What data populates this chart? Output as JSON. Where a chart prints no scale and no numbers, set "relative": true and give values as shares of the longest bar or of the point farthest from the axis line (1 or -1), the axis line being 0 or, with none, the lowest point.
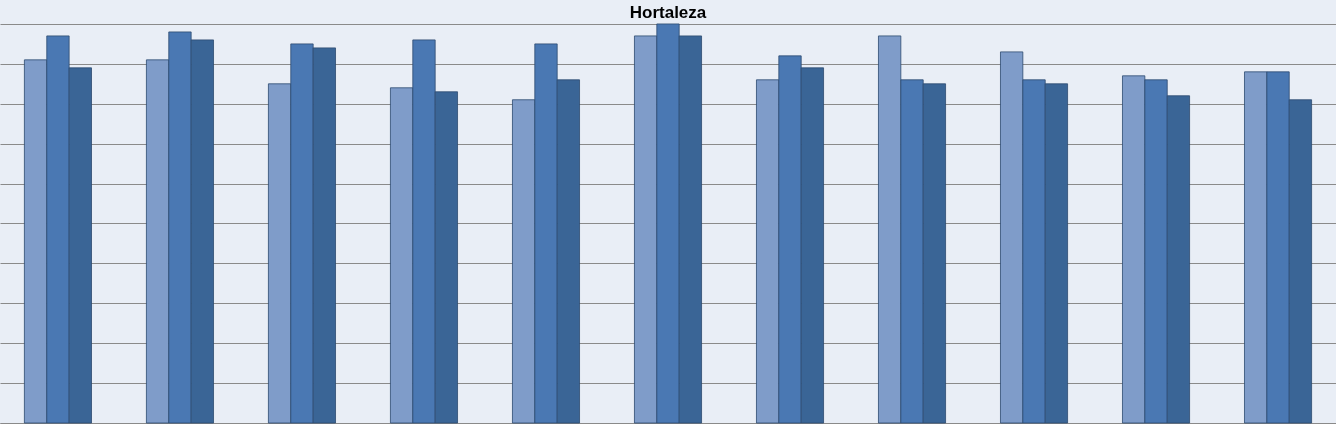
{
  "chart_data": {
    "type": "bar",
    "title": "Hortaleza",
    "relative": true,
    "grid": "y",
    "legend": false,
    "categories": [
      null,
      null,
      null,
      null,
      null,
      null,
      null,
      null,
      null,
      null,
      null
    ],
    "series": [
      {
        "color": "#7f9cc9",
        "values": [
          0.91,
          0.91,
          0.85,
          0.84,
          0.81,
          0.97,
          0.86,
          0.97,
          0.93,
          0.87,
          0.88
        ]
      },
      {
        "color": "#4a78b3",
        "values": [
          0.97,
          0.98,
          0.95,
          0.96,
          0.95,
          1,
          0.92,
          0.86,
          0.86,
          0.86,
          0.88
        ]
      },
      {
        "color": "#3a6596",
        "values": [
          0.89,
          0.96,
          0.94,
          0.83,
          0.86,
          0.97,
          0.89,
          0.85,
          0.85,
          0.82,
          0.81
        ]
      }
    ]
  }
}
